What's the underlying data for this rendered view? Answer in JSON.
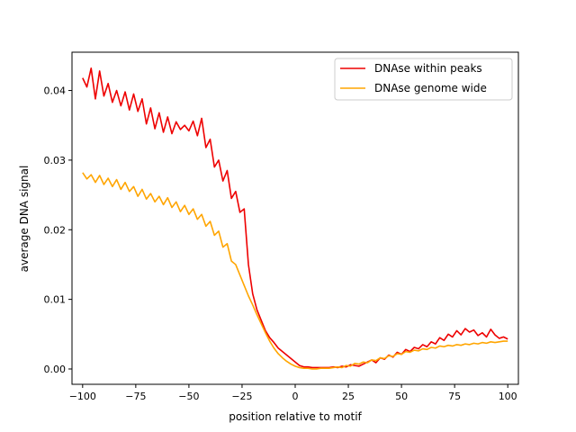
{
  "chart_data": {
    "type": "line",
    "title": "",
    "xlabel": "position relative to motif",
    "ylabel": "average DNA signal",
    "xlim": [
      -105,
      105
    ],
    "ylim": [
      -0.0022,
      0.0455
    ],
    "x_ticks": [
      -100,
      -75,
      -50,
      -25,
      0,
      25,
      50,
      75,
      100
    ],
    "y_ticks": [
      0.0,
      0.01,
      0.02,
      0.03,
      0.04
    ],
    "y_tick_labels": [
      "0.00",
      "0.01",
      "0.02",
      "0.03",
      "0.04"
    ],
    "grid": false,
    "legend": "top-right",
    "x": [
      -100,
      -98,
      -96,
      -94,
      -92,
      -90,
      -88,
      -86,
      -84,
      -82,
      -80,
      -78,
      -76,
      -74,
      -72,
      -70,
      -68,
      -66,
      -64,
      -62,
      -60,
      -58,
      -56,
      -54,
      -52,
      -50,
      -48,
      -46,
      -44,
      -42,
      -40,
      -38,
      -36,
      -34,
      -32,
      -30,
      -28,
      -26,
      -24,
      -22,
      -20,
      -18,
      -16,
      -14,
      -12,
      -10,
      -8,
      -6,
      -4,
      -2,
      0,
      2,
      4,
      6,
      8,
      10,
      12,
      14,
      16,
      18,
      20,
      22,
      24,
      26,
      28,
      30,
      32,
      34,
      36,
      38,
      40,
      42,
      44,
      46,
      48,
      50,
      52,
      54,
      56,
      58,
      60,
      62,
      64,
      66,
      68,
      70,
      72,
      74,
      76,
      78,
      80,
      82,
      84,
      86,
      88,
      90,
      92,
      94,
      96,
      98,
      100
    ],
    "series": [
      {
        "name": "DNAse within peaks",
        "color": "#ee0000",
        "values": [
          0.0418,
          0.0405,
          0.0432,
          0.0388,
          0.0428,
          0.0392,
          0.041,
          0.0383,
          0.04,
          0.0378,
          0.0398,
          0.0372,
          0.0395,
          0.037,
          0.0388,
          0.0352,
          0.0375,
          0.0345,
          0.0368,
          0.034,
          0.0362,
          0.0338,
          0.0355,
          0.0344,
          0.035,
          0.0342,
          0.0356,
          0.0335,
          0.036,
          0.0318,
          0.033,
          0.029,
          0.03,
          0.027,
          0.0285,
          0.0245,
          0.0255,
          0.0225,
          0.023,
          0.015,
          0.0108,
          0.0085,
          0.007,
          0.0055,
          0.0045,
          0.0038,
          0.003,
          0.0025,
          0.002,
          0.0015,
          0.001,
          0.0005,
          0.0003,
          0.0003,
          0.0002,
          0.0002,
          0.0002,
          0.0002,
          0.0002,
          0.0003,
          0.0002,
          0.0004,
          0.0003,
          0.0006,
          0.0005,
          0.0004,
          0.0007,
          0.001,
          0.0013,
          0.0009,
          0.0016,
          0.0014,
          0.002,
          0.0017,
          0.0024,
          0.0021,
          0.0028,
          0.0025,
          0.0031,
          0.0029,
          0.0035,
          0.0032,
          0.0039,
          0.0036,
          0.0045,
          0.0041,
          0.005,
          0.0046,
          0.0055,
          0.0049,
          0.0058,
          0.0053,
          0.0056,
          0.0048,
          0.0052,
          0.0046,
          0.0057,
          0.0049,
          0.0044,
          0.0046,
          0.0043
        ]
      },
      {
        "name": "DNAse genome wide",
        "color": "#ffa500",
        "values": [
          0.0282,
          0.0273,
          0.0279,
          0.0268,
          0.0278,
          0.0265,
          0.0274,
          0.0262,
          0.0272,
          0.0258,
          0.0268,
          0.0255,
          0.0262,
          0.0248,
          0.0258,
          0.0244,
          0.0252,
          0.024,
          0.0248,
          0.0236,
          0.0246,
          0.0232,
          0.024,
          0.0226,
          0.0235,
          0.0222,
          0.023,
          0.0215,
          0.0222,
          0.0205,
          0.0212,
          0.0192,
          0.0198,
          0.0175,
          0.018,
          0.0155,
          0.015,
          0.0135,
          0.012,
          0.0105,
          0.0092,
          0.0078,
          0.0065,
          0.0052,
          0.004,
          0.003,
          0.0022,
          0.0016,
          0.0011,
          0.0007,
          0.0004,
          0.0002,
          0.0001,
          0.0001,
          0.0,
          0.0,
          0.0001,
          0.0001,
          0.0001,
          0.0002,
          0.0003,
          0.0002,
          0.0005,
          0.0004,
          0.0008,
          0.0007,
          0.001,
          0.0009,
          0.0013,
          0.0012,
          0.0016,
          0.0015,
          0.0019,
          0.0018,
          0.0022,
          0.0021,
          0.0025,
          0.0024,
          0.0027,
          0.0026,
          0.0029,
          0.0028,
          0.0031,
          0.003,
          0.0033,
          0.0032,
          0.0034,
          0.0033,
          0.0035,
          0.0034,
          0.0036,
          0.0035,
          0.0037,
          0.0036,
          0.0038,
          0.0037,
          0.0039,
          0.0038,
          0.0039,
          0.004,
          0.004
        ]
      }
    ]
  }
}
